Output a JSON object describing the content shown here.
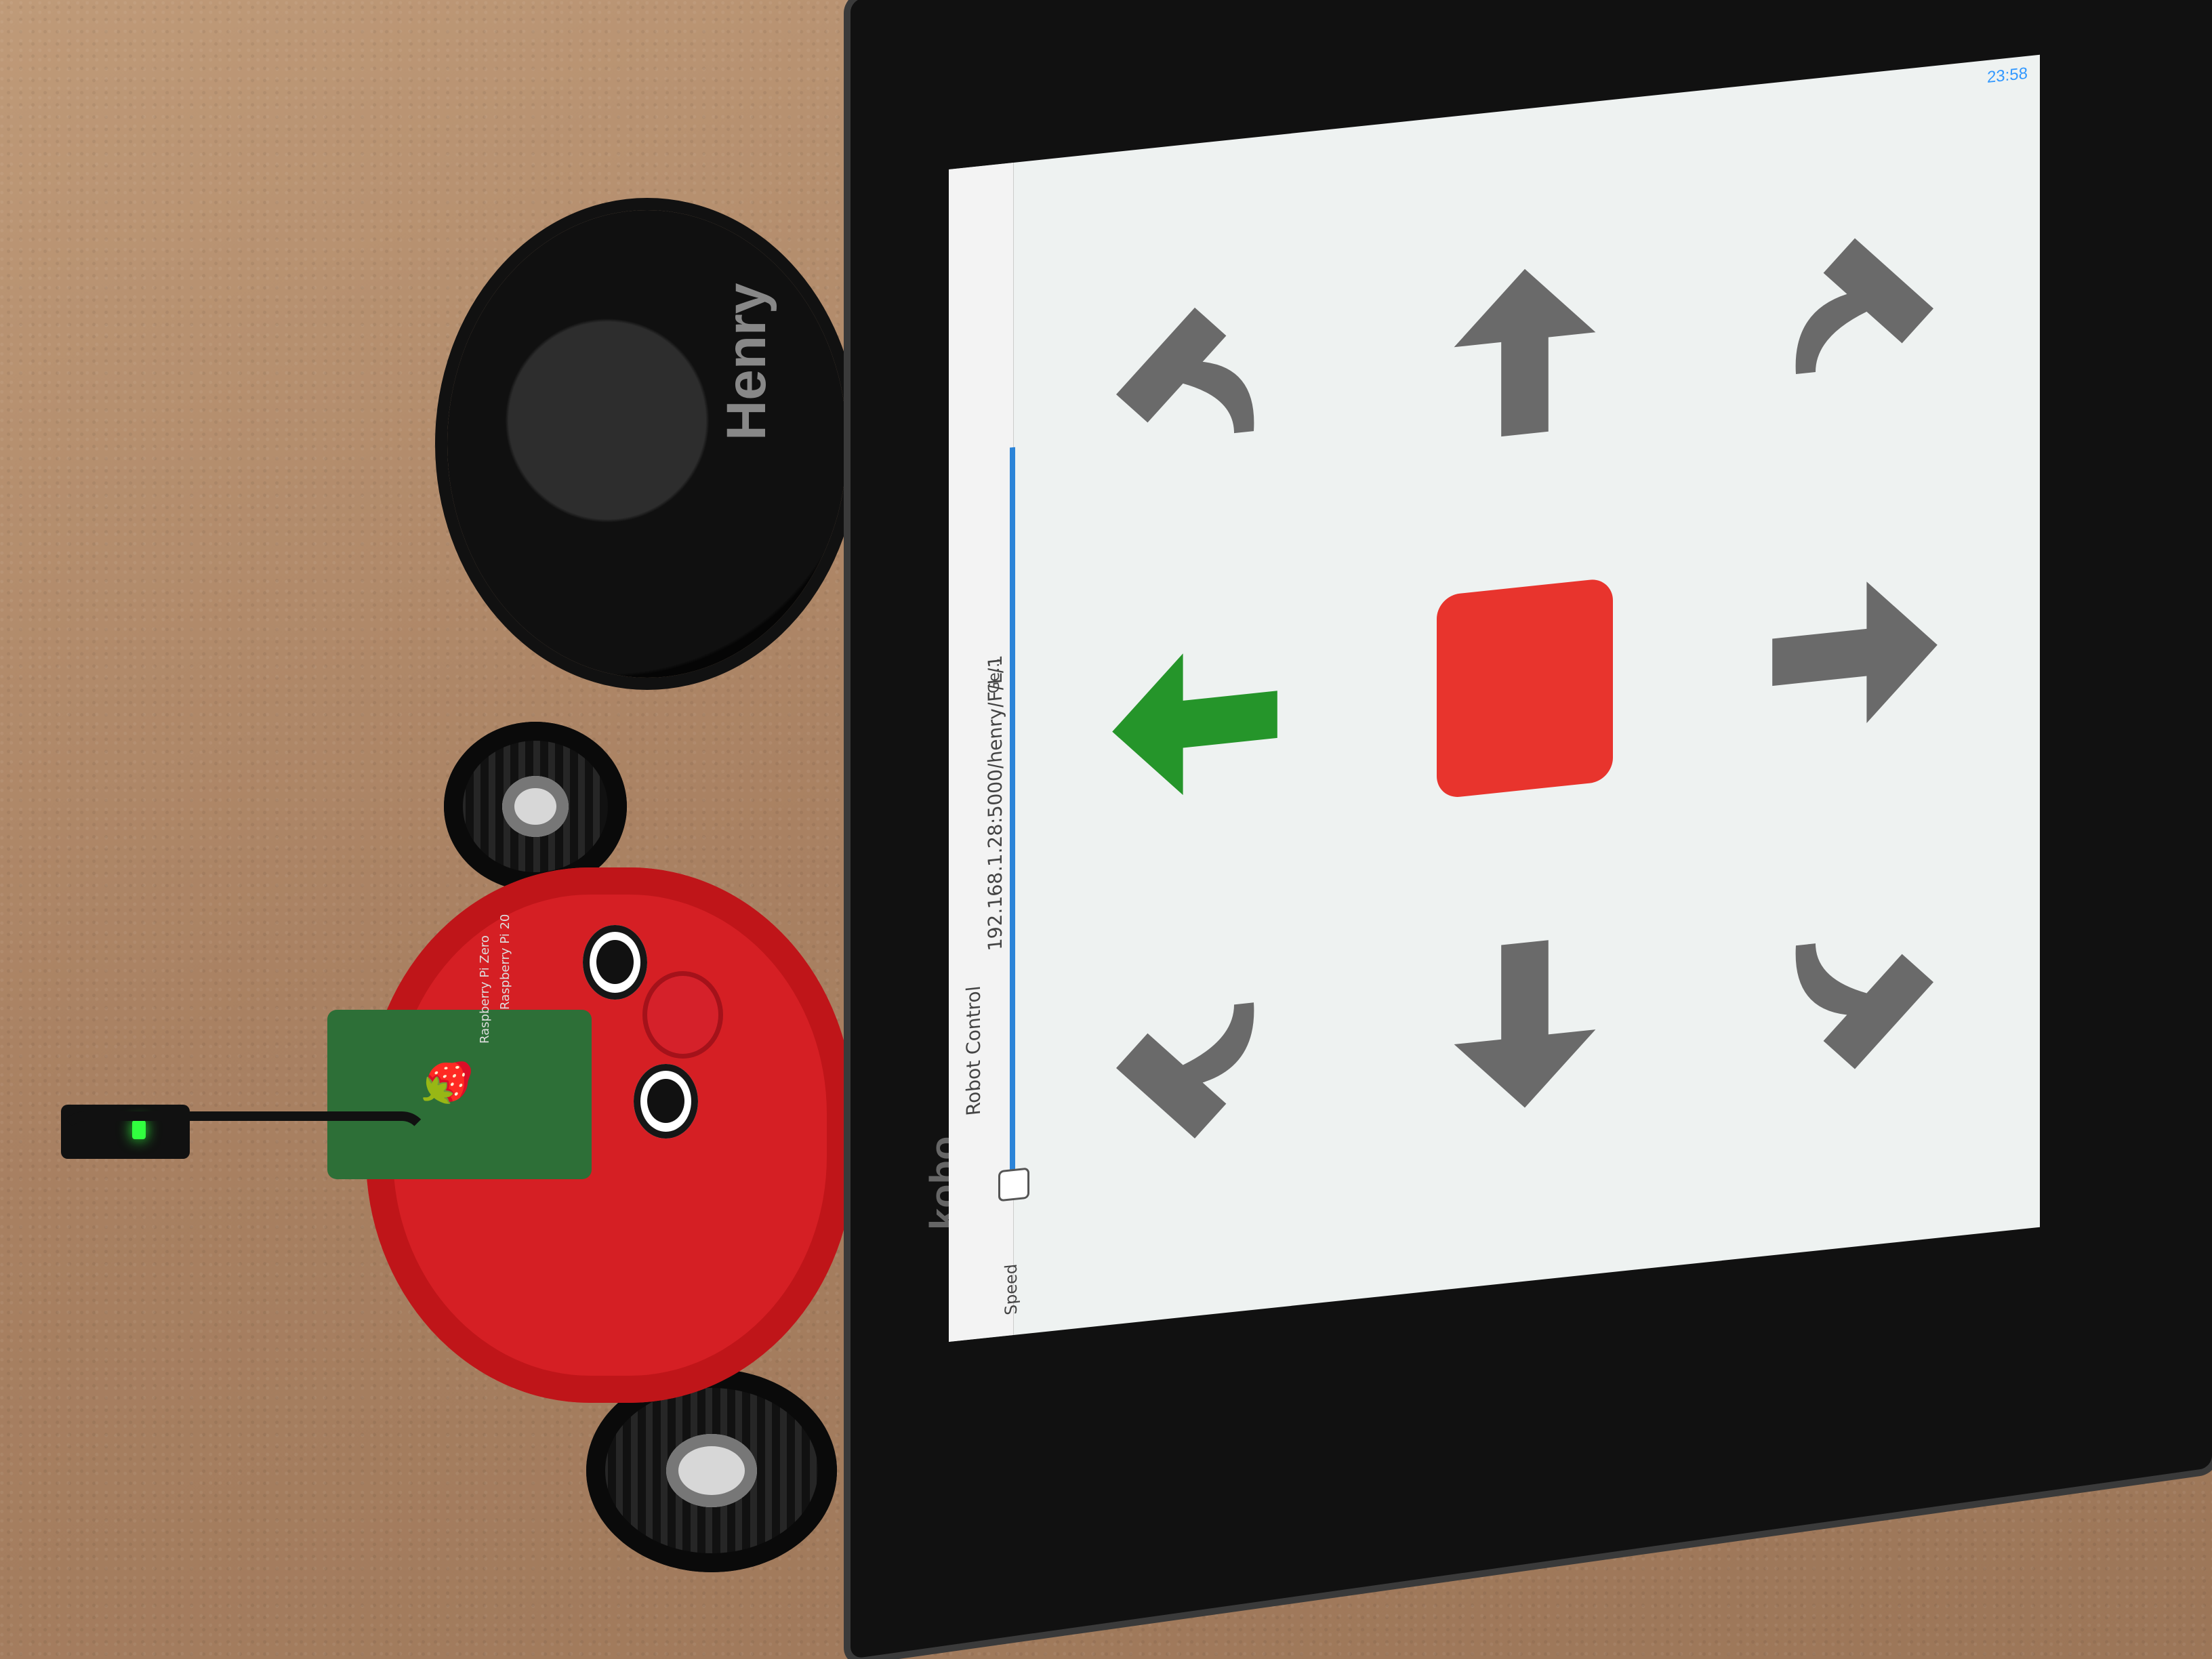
{
  "device": {
    "brand": "kobo",
    "status_time": "23:58"
  },
  "browser": {
    "tab_title": "Robot Control",
    "url": "192.168.1.28:5000/henry/F/L/1",
    "speed_label": "Speed",
    "menu_label": "Ge..."
  },
  "controls": {
    "active_direction": "left",
    "stop_color": "#e8342d",
    "active_color": "#25952a",
    "inactive_color": "#6a6a6a",
    "buttons": [
      {
        "name": "forward-left",
        "icon": "curved-forward-left-arrow"
      },
      {
        "name": "forward",
        "icon": "up-arrow"
      },
      {
        "name": "forward-right",
        "icon": "curved-forward-right-arrow"
      },
      {
        "name": "left",
        "icon": "left-arrow"
      },
      {
        "name": "stop",
        "icon": "stop-square"
      },
      {
        "name": "right",
        "icon": "right-arrow"
      },
      {
        "name": "back-left",
        "icon": "curved-back-left-arrow"
      },
      {
        "name": "back",
        "icon": "down-arrow"
      },
      {
        "name": "back-right",
        "icon": "curved-back-right-arrow"
      }
    ]
  },
  "objects": {
    "lid_label": "Henry",
    "board_label": "Raspberry Pi Zero",
    "board_sub_label": "Raspberry Pi 20"
  }
}
